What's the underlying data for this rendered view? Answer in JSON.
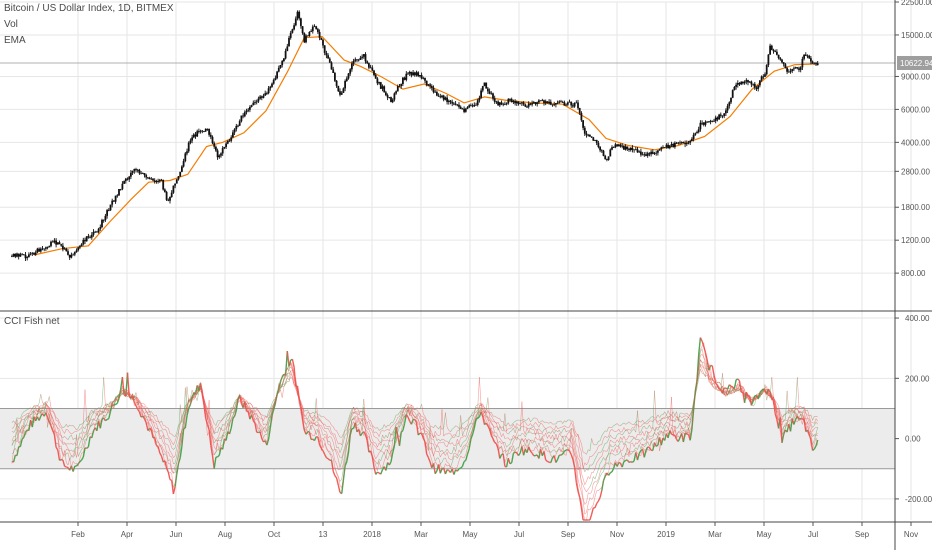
{
  "header": {
    "symbol_title": "Bitcoin / US Dollar Index, 1D, BITMEX",
    "vol_label": "Vol",
    "ema_label": "EMA"
  },
  "indicator": {
    "name": "CCI Fish net"
  },
  "colors": {
    "candle": "#111111",
    "ema": "#f57c00",
    "fish_red": "#ef5350",
    "fish_green": "#43a047",
    "band_fill": "#ececec",
    "grid": "#e6e6e6",
    "axis": "#555555",
    "price_tag_bg": "#9e9e9e"
  },
  "chart_data": [
    {
      "type": "line",
      "title": "Bitcoin / US Dollar Index, 1D, BITMEX",
      "scale": "log",
      "y_ticks": [
        "22500.00",
        "15000.00",
        "10622.94",
        "9000.00",
        "6000.00",
        "4000.00",
        "2800.00",
        "1800.00",
        "1200.00",
        "800.00"
      ],
      "y_tick_values": [
        22500,
        15000,
        9000,
        6000,
        4000,
        2800,
        1800,
        1200,
        800
      ],
      "last_price": "10622.94",
      "last_price_value": 10622.94,
      "x_tick_labels": [
        "Feb",
        "Apr",
        "Jun",
        "Aug",
        "Oct",
        "13",
        "2018",
        "Mar",
        "May",
        "Jul",
        "Sep",
        "Nov",
        "2019",
        "Mar",
        "May",
        "Jul",
        "Sep",
        "Nov"
      ],
      "series": [
        {
          "name": "Price",
          "points": [
            [
              "2017-01-15",
              1000
            ],
            [
              "2017-02-01",
              970
            ],
            [
              "2017-02-20",
              1100
            ],
            [
              "2017-03-10",
              1180
            ],
            [
              "2017-03-25",
              960
            ],
            [
              "2017-04-10",
              1200
            ],
            [
              "2017-04-25",
              1330
            ],
            [
              "2017-05-10",
              1800
            ],
            [
              "2017-05-25",
              2350
            ],
            [
              "2017-06-10",
              2900
            ],
            [
              "2017-06-25",
              2550
            ],
            [
              "2017-07-10",
              2450
            ],
            [
              "2017-07-17",
              1900
            ],
            [
              "2017-08-01",
              2800
            ],
            [
              "2017-08-15",
              4300
            ],
            [
              "2017-09-01",
              4800
            ],
            [
              "2017-09-15",
              3300
            ],
            [
              "2017-10-01",
              4400
            ],
            [
              "2017-10-15",
              5700
            ],
            [
              "2017-11-01",
              6800
            ],
            [
              "2017-11-15",
              7800
            ],
            [
              "2017-12-01",
              11000
            ],
            [
              "2017-12-17",
              19500
            ],
            [
              "2017-12-25",
              14000
            ],
            [
              "2018-01-06",
              17000
            ],
            [
              "2018-01-20",
              11500
            ],
            [
              "2018-02-06",
              6900
            ],
            [
              "2018-02-20",
              11000
            ],
            [
              "2018-03-05",
              11500
            ],
            [
              "2018-03-20",
              8500
            ],
            [
              "2018-04-06",
              6700
            ],
            [
              "2018-04-25",
              9300
            ],
            [
              "2018-05-10",
              9200
            ],
            [
              "2018-05-25",
              7500
            ],
            [
              "2018-06-15",
              6600
            ],
            [
              "2018-06-29",
              5900
            ],
            [
              "2018-07-15",
              6400
            ],
            [
              "2018-07-25",
              8200
            ],
            [
              "2018-08-10",
              6300
            ],
            [
              "2018-08-25",
              6700
            ],
            [
              "2018-09-10",
              6300
            ],
            [
              "2018-09-25",
              6600
            ],
            [
              "2018-10-10",
              6400
            ],
            [
              "2018-10-25",
              6450
            ],
            [
              "2018-11-10",
              6400
            ],
            [
              "2018-11-20",
              4500
            ],
            [
              "2018-12-01",
              4100
            ],
            [
              "2018-12-15",
              3250
            ],
            [
              "2018-12-25",
              3900
            ],
            [
              "2019-01-10",
              3700
            ],
            [
              "2019-01-28",
              3450
            ],
            [
              "2019-02-10",
              3600
            ],
            [
              "2019-02-25",
              3800
            ],
            [
              "2019-03-10",
              3900
            ],
            [
              "2019-03-25",
              4000
            ],
            [
              "2019-04-05",
              5000
            ],
            [
              "2019-04-20",
              5200
            ],
            [
              "2019-05-05",
              5800
            ],
            [
              "2019-05-15",
              7900
            ],
            [
              "2019-05-30",
              8600
            ],
            [
              "2019-06-10",
              7800
            ],
            [
              "2019-06-20",
              9500
            ],
            [
              "2019-06-26",
              13000
            ],
            [
              "2019-07-05",
              11500
            ],
            [
              "2019-07-17",
              9600
            ],
            [
              "2019-07-31",
              10000
            ],
            [
              "2019-08-06",
              11900
            ],
            [
              "2019-08-15",
              10300
            ],
            [
              "2019-08-22",
              10622.94
            ]
          ]
        },
        {
          "name": "EMA",
          "points": [
            [
              "2017-02-10",
              1000
            ],
            [
              "2017-03-15",
              1080
            ],
            [
              "2017-04-15",
              1120
            ],
            [
              "2017-05-10",
              1500
            ],
            [
              "2017-06-05",
              2000
            ],
            [
              "2017-06-25",
              2450
            ],
            [
              "2017-07-20",
              2500
            ],
            [
              "2017-08-10",
              2700
            ],
            [
              "2017-09-01",
              3800
            ],
            [
              "2017-09-20",
              4000
            ],
            [
              "2017-10-15",
              4500
            ],
            [
              "2017-11-10",
              5900
            ],
            [
              "2017-12-05",
              9500
            ],
            [
              "2017-12-25",
              14500
            ],
            [
              "2018-01-15",
              14700
            ],
            [
              "2018-02-10",
              11000
            ],
            [
              "2018-03-01",
              10200
            ],
            [
              "2018-03-25",
              9000
            ],
            [
              "2018-04-20",
              7700
            ],
            [
              "2018-05-15",
              8200
            ],
            [
              "2018-06-10",
              7300
            ],
            [
              "2018-07-01",
              6500
            ],
            [
              "2018-07-25",
              7000
            ],
            [
              "2018-08-20",
              6700
            ],
            [
              "2018-09-20",
              6500
            ],
            [
              "2018-10-25",
              6400
            ],
            [
              "2018-11-25",
              5300
            ],
            [
              "2018-12-15",
              4200
            ],
            [
              "2019-01-10",
              3850
            ],
            [
              "2019-02-10",
              3650
            ],
            [
              "2019-03-10",
              3850
            ],
            [
              "2019-04-10",
              4300
            ],
            [
              "2019-05-10",
              5500
            ],
            [
              "2019-06-05",
              7700
            ],
            [
              "2019-07-01",
              9600
            ],
            [
              "2019-07-25",
              10400
            ],
            [
              "2019-08-22",
              10500
            ]
          ]
        }
      ],
      "xlim": [
        "2017-01-01",
        "2019-11-20"
      ],
      "ylim": [
        650,
        22500
      ],
      "grid": true
    },
    {
      "type": "line",
      "title": "CCI Fish net",
      "y_ticks": [
        "400.00",
        "200.00",
        "0.00",
        "-200.00"
      ],
      "y_tick_values": [
        400,
        200,
        0,
        -200
      ],
      "ylim": [
        -270,
        420
      ],
      "band": [
        -100,
        100
      ],
      "series": [
        {
          "name": "CCI",
          "points": [
            [
              "2017-01-15",
              -20
            ],
            [
              "2017-02-05",
              100
            ],
            [
              "2017-02-25",
              150
            ],
            [
              "2017-03-15",
              -30
            ],
            [
              "2017-04-01",
              -50
            ],
            [
              "2017-04-20",
              80
            ],
            [
              "2017-05-10",
              140
            ],
            [
              "2017-05-25",
              220
            ],
            [
              "2017-06-10",
              180
            ],
            [
              "2017-06-30",
              60
            ],
            [
              "2017-07-15",
              -40
            ],
            [
              "2017-07-25",
              -120
            ],
            [
              "2017-08-10",
              160
            ],
            [
              "2017-08-25",
              240
            ],
            [
              "2017-09-10",
              -30
            ],
            [
              "2017-09-25",
              60
            ],
            [
              "2017-10-10",
              190
            ],
            [
              "2017-10-25",
              120
            ],
            [
              "2017-11-10",
              30
            ],
            [
              "2017-11-25",
              230
            ],
            [
              "2017-12-10",
              330
            ],
            [
              "2017-12-25",
              80
            ],
            [
              "2018-01-10",
              60
            ],
            [
              "2018-01-25",
              -20
            ],
            [
              "2018-02-06",
              -130
            ],
            [
              "2018-02-20",
              110
            ],
            [
              "2018-03-05",
              70
            ],
            [
              "2018-03-20",
              -60
            ],
            [
              "2018-04-05",
              -20
            ],
            [
              "2018-04-25",
              140
            ],
            [
              "2018-05-10",
              80
            ],
            [
              "2018-05-25",
              -40
            ],
            [
              "2018-06-15",
              -60
            ],
            [
              "2018-07-01",
              -20
            ],
            [
              "2018-07-20",
              150
            ],
            [
              "2018-08-05",
              40
            ],
            [
              "2018-08-20",
              -30
            ],
            [
              "2018-09-05",
              20
            ],
            [
              "2018-09-25",
              10
            ],
            [
              "2018-10-15",
              -15
            ],
            [
              "2018-11-05",
              10
            ],
            [
              "2018-11-20",
              -250
            ],
            [
              "2018-12-05",
              -150
            ],
            [
              "2018-12-20",
              -40
            ],
            [
              "2019-01-05",
              -20
            ],
            [
              "2019-01-25",
              0
            ],
            [
              "2019-02-10",
              30
            ],
            [
              "2019-02-25",
              70
            ],
            [
              "2019-03-10",
              60
            ],
            [
              "2019-03-25",
              60
            ],
            [
              "2019-04-05",
              380
            ],
            [
              "2019-04-20",
              260
            ],
            [
              "2019-05-05",
              210
            ],
            [
              "2019-05-20",
              240
            ],
            [
              "2019-06-05",
              170
            ],
            [
              "2019-06-20",
              230
            ],
            [
              "2019-06-30",
              180
            ],
            [
              "2019-07-10",
              50
            ],
            [
              "2019-07-25",
              120
            ],
            [
              "2019-08-05",
              110
            ],
            [
              "2019-08-15",
              20
            ],
            [
              "2019-08-22",
              40
            ]
          ]
        }
      ]
    }
  ]
}
